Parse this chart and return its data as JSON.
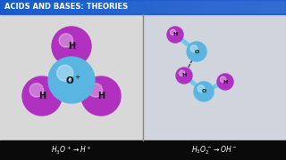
{
  "title": "ACIDS AND BASES: THEORIES",
  "title_bg_left": "#0a3aaa",
  "title_bg_right": "#1a6fc4",
  "title_color": "white",
  "bg_color": "#c8c8c8",
  "left_panel_bg": "#d8d8d8",
  "right_panel_bg": "#d0d4dc",
  "bottom_bg": "#0a0a0a",
  "bottom_color": "white",
  "divider_color": "#888888",
  "oxygen_color": "#5ab5e0",
  "oxygen_dark": "#3a90c0",
  "hydrogen_color": "#b030c0",
  "hydrogen_dark": "#8020a0",
  "bond_color": "#70c8e8",
  "dashed_color": "#555555",
  "label_color": "#111111",
  "left_label": "$H_3O^+ \\rightarrow H^+$",
  "right_label": "$H_3O_2^- \\rightarrow OH^-$"
}
